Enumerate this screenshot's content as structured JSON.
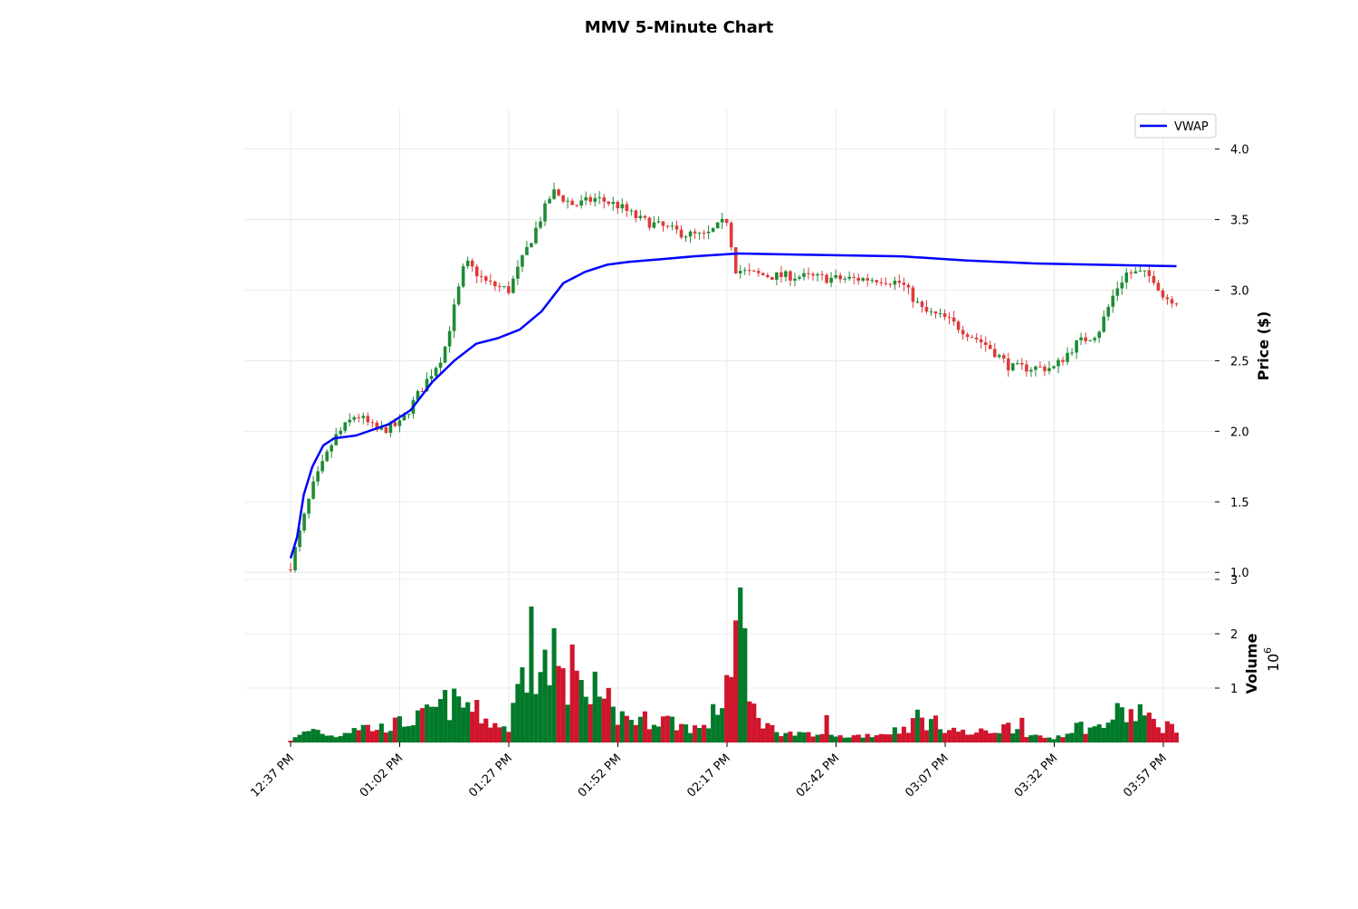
{
  "chart_data": {
    "type": "candlestick",
    "title": "MMV 5-Minute Chart",
    "price_panel": {
      "ylabel": "Price ($)",
      "ylim": [
        0.95,
        4.28
      ],
      "yticks": [
        1.0,
        1.5,
        2.0,
        2.5,
        3.0,
        3.5,
        4.0
      ],
      "ytick_labels": [
        "1.0",
        "1.5",
        "2.0",
        "2.5",
        "3.0",
        "3.5",
        "4.0"
      ],
      "grid": true
    },
    "volume_panel": {
      "ylabel": "Volume",
      "multiplier_label": "10",
      "multiplier_exponent": "6",
      "ylim": [
        0,
        3.0
      ],
      "yticks": [
        1,
        2,
        3
      ],
      "ytick_labels": [
        "1",
        "2",
        "3"
      ],
      "grid": true
    },
    "xticks": [
      {
        "index": 0,
        "label": "12:37 PM"
      },
      {
        "index": 5,
        "label": "01:02 PM"
      },
      {
        "index": 10,
        "label": "01:27 PM"
      },
      {
        "index": 15,
        "label": "01:52 PM"
      },
      {
        "index": 20,
        "label": "02:17 PM"
      },
      {
        "index": 25,
        "label": "02:42 PM"
      },
      {
        "index": 30,
        "label": "03:07 PM"
      },
      {
        "index": 35,
        "label": "03:32 PM"
      },
      {
        "index": 40,
        "label": "03:57 PM"
      }
    ],
    "legend": {
      "position": "top-right",
      "entries": [
        {
          "label": "VWAP",
          "color": "#0000ff"
        }
      ]
    },
    "colors": {
      "up": "#1e8c35",
      "down": "#e03a3a",
      "vol_up": "#007a2a",
      "vol_down": "#d0152d",
      "vwap": "#0000ff",
      "grid": "#e6e6e6"
    },
    "price_anchors": [
      [
        0,
        1.05
      ],
      [
        1,
        1.6
      ],
      [
        2,
        1.95
      ],
      [
        3,
        2.12
      ],
      [
        4,
        2.0
      ],
      [
        5,
        2.05
      ],
      [
        6,
        2.3
      ],
      [
        7,
        2.55
      ],
      [
        8,
        3.2
      ],
      [
        9,
        3.05
      ],
      [
        10,
        3.0
      ],
      [
        11,
        3.35
      ],
      [
        12,
        3.7
      ],
      [
        13,
        3.6
      ],
      [
        14,
        3.65
      ],
      [
        15,
        3.6
      ],
      [
        16,
        3.5
      ],
      [
        17,
        3.45
      ],
      [
        18,
        3.4
      ],
      [
        19,
        3.38
      ],
      [
        20,
        3.5
      ],
      [
        20.4,
        3.15
      ],
      [
        21,
        3.12
      ],
      [
        22,
        3.1
      ],
      [
        23,
        3.1
      ],
      [
        25,
        3.08
      ],
      [
        27,
        3.08
      ],
      [
        28,
        3.05
      ],
      [
        29,
        2.85
      ],
      [
        30,
        2.8
      ],
      [
        31,
        2.7
      ],
      [
        32,
        2.6
      ],
      [
        33,
        2.45
      ],
      [
        34,
        2.45
      ],
      [
        35,
        2.45
      ],
      [
        36,
        2.62
      ],
      [
        37,
        2.7
      ],
      [
        37.8,
        3.0
      ],
      [
        38.3,
        3.12
      ],
      [
        39,
        3.12
      ],
      [
        39.6,
        3.08
      ],
      [
        40,
        2.95
      ],
      [
        40.6,
        2.93
      ]
    ],
    "vwap": [
      [
        0,
        1.1
      ],
      [
        0.3,
        1.25
      ],
      [
        0.6,
        1.55
      ],
      [
        1.0,
        1.75
      ],
      [
        1.5,
        1.9
      ],
      [
        2.0,
        1.95
      ],
      [
        3.0,
        1.97
      ],
      [
        4.5,
        2.05
      ],
      [
        5.5,
        2.15
      ],
      [
        6.5,
        2.35
      ],
      [
        7.5,
        2.5
      ],
      [
        8.5,
        2.62
      ],
      [
        9.5,
        2.66
      ],
      [
        10.5,
        2.72
      ],
      [
        11.5,
        2.85
      ],
      [
        12.5,
        3.05
      ],
      [
        13.5,
        3.13
      ],
      [
        14.5,
        3.18
      ],
      [
        15.5,
        3.2
      ],
      [
        17,
        3.22
      ],
      [
        18.5,
        3.24
      ],
      [
        20.5,
        3.26
      ],
      [
        24,
        3.25
      ],
      [
        28,
        3.24
      ],
      [
        31,
        3.21
      ],
      [
        34,
        3.19
      ],
      [
        37,
        3.18
      ],
      [
        40.6,
        3.17
      ]
    ],
    "volume_anchors": [
      [
        0,
        0.03
      ],
      [
        1,
        0.25
      ],
      [
        2,
        0.1
      ],
      [
        3,
        0.3
      ],
      [
        4,
        0.25
      ],
      [
        5,
        0.35
      ],
      [
        6,
        0.45
      ],
      [
        7,
        0.7
      ],
      [
        8,
        0.7
      ],
      [
        9,
        0.4
      ],
      [
        10,
        0.25
      ],
      [
        10.7,
        1.4
      ],
      [
        11,
        1.3
      ],
      [
        12,
        1.4
      ],
      [
        13,
        1.0
      ],
      [
        14,
        0.6
      ],
      [
        15,
        0.5
      ],
      [
        16,
        0.4
      ],
      [
        17,
        0.45
      ],
      [
        18,
        0.3
      ],
      [
        19,
        0.25
      ],
      [
        19.8,
        0.8
      ],
      [
        20.5,
        2.2
      ],
      [
        21,
        0.7
      ],
      [
        22,
        0.25
      ],
      [
        23,
        0.15
      ],
      [
        25,
        0.1
      ],
      [
        27,
        0.15
      ],
      [
        28,
        0.25
      ],
      [
        29,
        0.4
      ],
      [
        30,
        0.3
      ],
      [
        31,
        0.15
      ],
      [
        32,
        0.2
      ],
      [
        33,
        0.3
      ],
      [
        34,
        0.1
      ],
      [
        35,
        0.08
      ],
      [
        36,
        0.3
      ],
      [
        37,
        0.25
      ],
      [
        38,
        0.55
      ],
      [
        39,
        0.45
      ],
      [
        40,
        0.3
      ],
      [
        40.6,
        0.3
      ]
    ],
    "volume_spikes": [
      [
        11.0,
        2.5
      ],
      [
        12.0,
        2.1
      ],
      [
        13.0,
        1.8
      ],
      [
        14.0,
        1.3
      ],
      [
        14.5,
        1.0
      ],
      [
        20.7,
        2.85
      ],
      [
        20.9,
        2.1
      ],
      [
        24.5,
        0.5
      ],
      [
        28.8,
        0.6
      ],
      [
        33.6,
        0.45
      ],
      [
        39.0,
        0.7
      ]
    ]
  }
}
